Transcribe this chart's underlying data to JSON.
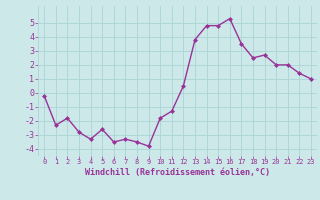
{
  "x": [
    0,
    1,
    2,
    3,
    4,
    5,
    6,
    7,
    8,
    9,
    10,
    11,
    12,
    13,
    14,
    15,
    16,
    17,
    18,
    19,
    20,
    21,
    22,
    23
  ],
  "y": [
    -0.2,
    -2.3,
    -1.8,
    -2.8,
    -3.3,
    -2.6,
    -3.5,
    -3.3,
    -3.5,
    -3.8,
    -1.8,
    -1.3,
    0.5,
    3.8,
    4.8,
    4.8,
    5.3,
    3.5,
    2.5,
    2.7,
    2.0,
    2.0,
    1.4,
    1.0
  ],
  "line_color": "#993399",
  "marker": "D",
  "markersize": 2.0,
  "linewidth": 1.0,
  "bg_color": "#cce8e8",
  "grid_color": "#aad4d4",
  "xlabel": "Windchill (Refroidissement éolien,°C)",
  "xlabel_color": "#993399",
  "tick_color": "#993399",
  "label_color": "#993399",
  "ylim": [
    -4.5,
    6.2
  ],
  "xlim": [
    -0.5,
    23.5
  ],
  "yticks": [
    -4,
    -3,
    -2,
    -1,
    0,
    1,
    2,
    3,
    4,
    5
  ],
  "xticks": [
    0,
    1,
    2,
    3,
    4,
    5,
    6,
    7,
    8,
    9,
    10,
    11,
    12,
    13,
    14,
    15,
    16,
    17,
    18,
    19,
    20,
    21,
    22,
    23
  ],
  "tick_fontsize": 5.0,
  "xlabel_fontsize": 6.0
}
